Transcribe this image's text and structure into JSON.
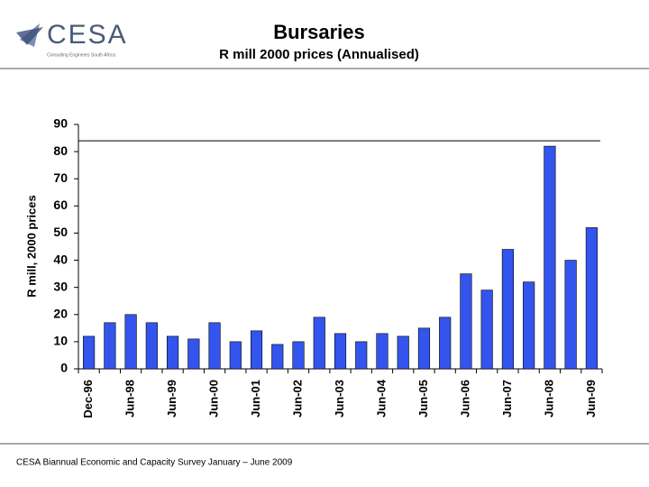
{
  "header": {
    "logo_text": "CESA",
    "logo_subtitle": "Consulting Engineers South Africa"
  },
  "footer": "CESA Biannual Economic and Capacity Survey January – June 2009",
  "chart_data": {
    "type": "bar",
    "title": "Bursaries",
    "subtitle": "R mill 2000 prices (Annualised)",
    "y_label": "R mill, 2000 prices",
    "categories": [
      "Dec-96",
      null,
      "Jun-98",
      null,
      "Jun-99",
      null,
      "Jun-00",
      null,
      "Jun-01",
      null,
      "Jun-02",
      null,
      "Jun-03",
      null,
      "Jun-04",
      null,
      "Jun-05",
      null,
      "Jun-06",
      null,
      "Jun-07",
      null,
      "Jun-08",
      null,
      "Jun-09"
    ],
    "values": [
      12,
      17,
      20,
      17,
      12,
      11,
      17,
      10,
      14,
      9,
      10,
      19,
      13,
      10,
      13,
      12,
      15,
      19,
      35,
      29,
      44,
      32,
      82,
      40,
      52
    ],
    "color": "#3355ee",
    "reference_line": 84,
    "ylim": [
      0,
      90
    ],
    "yticks": [
      0,
      10,
      20,
      30,
      40,
      50,
      60,
      70,
      80,
      90
    ],
    "grid": false
  }
}
